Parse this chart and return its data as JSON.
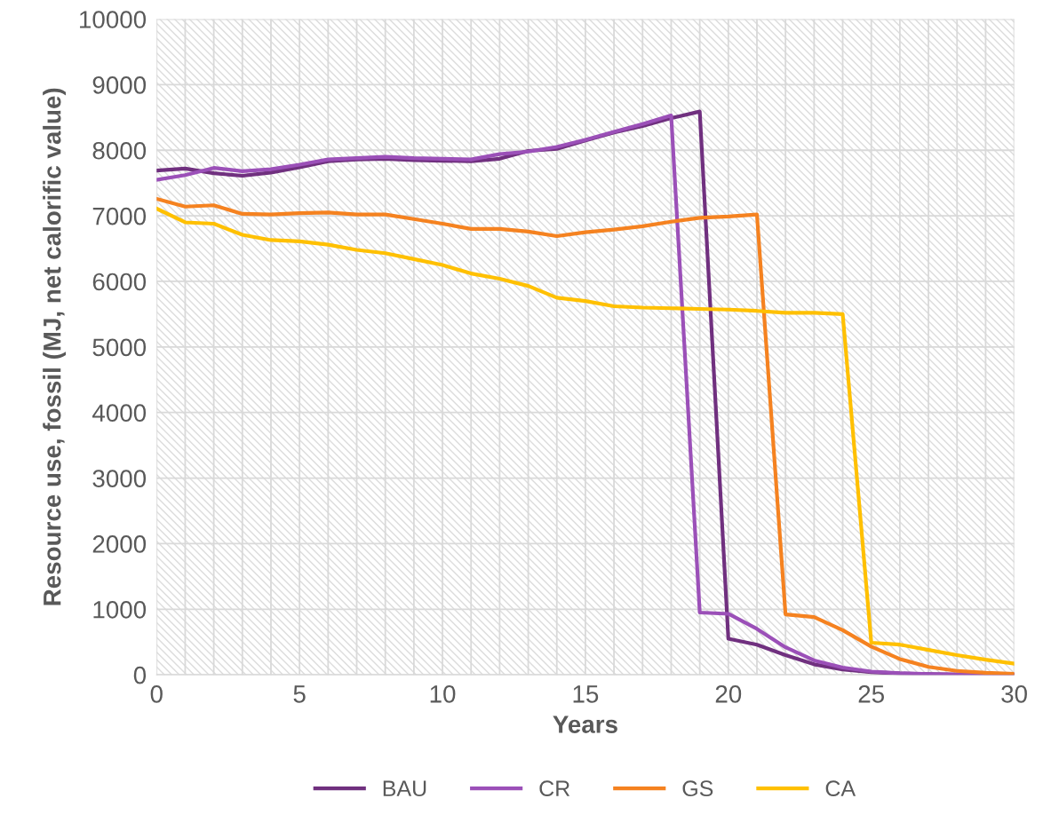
{
  "chart_data": {
    "type": "line",
    "xlabel": "Years",
    "ylabel": "Resource use, fossil (MJ, net calorific value)",
    "x": [
      0,
      1,
      2,
      3,
      4,
      5,
      6,
      7,
      8,
      9,
      10,
      11,
      12,
      13,
      14,
      15,
      16,
      17,
      18,
      19,
      20,
      21,
      22,
      23,
      24,
      25,
      26,
      27,
      28,
      29,
      30
    ],
    "series": [
      {
        "name": "BAU",
        "color": "#70307f",
        "values": [
          7690,
          7720,
          7650,
          7610,
          7660,
          7740,
          7830,
          7860,
          7870,
          7850,
          7840,
          7830,
          7870,
          7990,
          8020,
          8150,
          8270,
          8370,
          8490,
          8590,
          550,
          460,
          300,
          160,
          80,
          40,
          20,
          10,
          5,
          2,
          0
        ]
      },
      {
        "name": "CR",
        "color": "#9b50b8",
        "values": [
          7550,
          7620,
          7730,
          7680,
          7710,
          7780,
          7860,
          7880,
          7900,
          7880,
          7870,
          7860,
          7940,
          7980,
          8050,
          8160,
          8280,
          8400,
          8530,
          950,
          930,
          700,
          420,
          220,
          110,
          50,
          25,
          12,
          6,
          3,
          0
        ]
      },
      {
        "name": "GS",
        "color": "#f58220",
        "values": [
          7260,
          7140,
          7160,
          7030,
          7020,
          7040,
          7050,
          7020,
          7020,
          6950,
          6880,
          6800,
          6800,
          6760,
          6690,
          6750,
          6790,
          6840,
          6910,
          6970,
          6990,
          7020,
          920,
          880,
          680,
          430,
          240,
          120,
          60,
          30,
          15
        ]
      },
      {
        "name": "CA",
        "color": "#ffc000",
        "values": [
          7110,
          6900,
          6880,
          6710,
          6630,
          6610,
          6560,
          6480,
          6430,
          6340,
          6250,
          6120,
          6040,
          5930,
          5750,
          5700,
          5620,
          5600,
          5590,
          5580,
          5570,
          5550,
          5520,
          5520,
          5500,
          490,
          460,
          380,
          300,
          230,
          170
        ]
      }
    ],
    "xlim": [
      0,
      30
    ],
    "xticks": [
      0,
      {
        "value": 1,
        "label": null
      },
      {
        "value": 2,
        "label": null
      },
      {
        "value": 3,
        "label": null
      },
      {
        "value": 4,
        "label": null
      },
      5,
      {
        "value": 6,
        "label": null
      },
      {
        "value": 7,
        "label": null
      },
      {
        "value": 8,
        "label": null
      },
      {
        "value": 9,
        "label": null
      },
      10,
      {
        "value": 11,
        "label": null
      },
      {
        "value": 12,
        "label": null
      },
      {
        "value": 13,
        "label": null
      },
      {
        "value": 14,
        "label": null
      },
      15,
      {
        "value": 16,
        "label": null
      },
      {
        "value": 17,
        "label": null
      },
      {
        "value": 18,
        "label": null
      },
      {
        "value": 19,
        "label": null
      },
      20,
      {
        "value": 21,
        "label": null
      },
      {
        "value": 22,
        "label": null
      },
      {
        "value": 23,
        "label": null
      },
      {
        "value": 24,
        "label": null
      },
      25,
      {
        "value": 26,
        "label": null
      },
      {
        "value": 27,
        "label": null
      },
      {
        "value": 28,
        "label": null
      },
      {
        "value": 29,
        "label": null
      },
      30
    ],
    "ylim": [
      0,
      10000
    ],
    "yticks": [
      0,
      1000,
      2000,
      3000,
      4000,
      5000,
      6000,
      7000,
      8000,
      9000,
      10000
    ],
    "grid": true,
    "legend": "bottom",
    "marker": "none",
    "line_style": "solid"
  }
}
